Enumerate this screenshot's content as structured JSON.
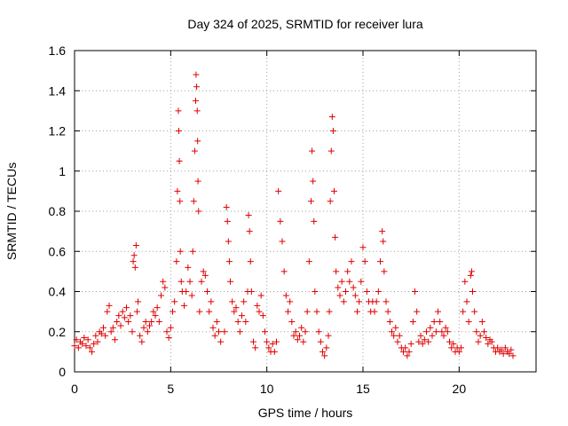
{
  "chart_data": {
    "type": "scatter",
    "title": "Day 324 of 2025, SRMTID for receiver lura",
    "xlabel": "GPS time / hours",
    "ylabel": "SRMTID / TECUs",
    "xlim": [
      0,
      24
    ],
    "ylim": [
      0,
      1.6
    ],
    "x_ticks": [
      0,
      5,
      10,
      15,
      20
    ],
    "x_tick_labels": [
      "0",
      "5",
      "10",
      "15",
      "20"
    ],
    "y_ticks": [
      0,
      0.2,
      0.4,
      0.6,
      0.8,
      1.0,
      1.2,
      1.4,
      1.6
    ],
    "y_tick_labels": [
      "0",
      "0.2",
      "0.4",
      "0.6",
      "0.8",
      "1",
      "1.2",
      "1.4",
      "1.6"
    ],
    "grid": true,
    "marker": "plus",
    "color": "#e00000",
    "series": [
      {
        "name": "SRMTID",
        "points": [
          [
            0.0,
            0.13
          ],
          [
            0.1,
            0.16
          ],
          [
            0.2,
            0.12
          ],
          [
            0.3,
            0.15
          ],
          [
            0.4,
            0.14
          ],
          [
            0.5,
            0.17
          ],
          [
            0.6,
            0.13
          ],
          [
            0.7,
            0.16
          ],
          [
            0.8,
            0.12
          ],
          [
            0.9,
            0.1
          ],
          [
            1.0,
            0.14
          ],
          [
            1.1,
            0.18
          ],
          [
            1.2,
            0.15
          ],
          [
            1.3,
            0.2
          ],
          [
            1.4,
            0.19
          ],
          [
            1.5,
            0.22
          ],
          [
            1.6,
            0.18
          ],
          [
            1.7,
            0.3
          ],
          [
            1.8,
            0.33
          ],
          [
            1.9,
            0.2
          ],
          [
            2.0,
            0.22
          ],
          [
            2.1,
            0.16
          ],
          [
            2.2,
            0.25
          ],
          [
            2.3,
            0.28
          ],
          [
            2.4,
            0.23
          ],
          [
            2.5,
            0.3
          ],
          [
            2.6,
            0.27
          ],
          [
            2.7,
            0.32
          ],
          [
            2.8,
            0.25
          ],
          [
            2.9,
            0.28
          ],
          [
            3.0,
            0.2
          ],
          [
            3.05,
            0.55
          ],
          [
            3.1,
            0.58
          ],
          [
            3.15,
            0.52
          ],
          [
            3.2,
            0.63
          ],
          [
            3.25,
            0.3
          ],
          [
            3.3,
            0.35
          ],
          [
            3.4,
            0.18
          ],
          [
            3.5,
            0.15
          ],
          [
            3.6,
            0.22
          ],
          [
            3.7,
            0.25
          ],
          [
            3.8,
            0.2
          ],
          [
            3.9,
            0.23
          ],
          [
            4.0,
            0.25
          ],
          [
            4.1,
            0.3
          ],
          [
            4.2,
            0.28
          ],
          [
            4.3,
            0.32
          ],
          [
            4.4,
            0.25
          ],
          [
            4.5,
            0.38
          ],
          [
            4.6,
            0.45
          ],
          [
            4.7,
            0.42
          ],
          [
            4.8,
            0.2
          ],
          [
            4.9,
            0.17
          ],
          [
            5.0,
            0.22
          ],
          [
            5.1,
            0.3
          ],
          [
            5.2,
            0.35
          ],
          [
            5.3,
            0.55
          ],
          [
            5.35,
            0.9
          ],
          [
            5.4,
            1.3
          ],
          [
            5.42,
            1.2
          ],
          [
            5.45,
            1.05
          ],
          [
            5.48,
            0.85
          ],
          [
            5.5,
            0.6
          ],
          [
            5.55,
            0.45
          ],
          [
            5.6,
            0.4
          ],
          [
            5.7,
            0.33
          ],
          [
            5.8,
            0.4
          ],
          [
            5.9,
            0.52
          ],
          [
            6.0,
            0.45
          ],
          [
            6.1,
            0.38
          ],
          [
            6.15,
            0.6
          ],
          [
            6.2,
            0.85
          ],
          [
            6.25,
            1.1
          ],
          [
            6.3,
            1.35
          ],
          [
            6.32,
            1.48
          ],
          [
            6.35,
            1.42
          ],
          [
            6.38,
            1.3
          ],
          [
            6.4,
            1.15
          ],
          [
            6.42,
            0.95
          ],
          [
            6.45,
            0.8
          ],
          [
            6.5,
            0.3
          ],
          [
            6.6,
            0.45
          ],
          [
            6.7,
            0.5
          ],
          [
            6.8,
            0.48
          ],
          [
            6.9,
            0.4
          ],
          [
            7.0,
            0.3
          ],
          [
            7.1,
            0.35
          ],
          [
            7.2,
            0.22
          ],
          [
            7.3,
            0.18
          ],
          [
            7.4,
            0.25
          ],
          [
            7.5,
            0.2
          ],
          [
            7.6,
            0.15
          ],
          [
            7.8,
            0.2
          ],
          [
            7.9,
            0.82
          ],
          [
            7.95,
            0.75
          ],
          [
            8.0,
            0.65
          ],
          [
            8.05,
            0.55
          ],
          [
            8.1,
            0.45
          ],
          [
            8.2,
            0.35
          ],
          [
            8.3,
            0.3
          ],
          [
            8.4,
            0.32
          ],
          [
            8.5,
            0.25
          ],
          [
            8.6,
            0.2
          ],
          [
            8.7,
            0.28
          ],
          [
            8.8,
            0.35
          ],
          [
            8.9,
            0.25
          ],
          [
            9.0,
            0.4
          ],
          [
            9.05,
            0.78
          ],
          [
            9.1,
            0.7
          ],
          [
            9.15,
            0.55
          ],
          [
            9.2,
            0.4
          ],
          [
            9.3,
            0.15
          ],
          [
            9.4,
            0.12
          ],
          [
            9.5,
            0.33
          ],
          [
            9.6,
            0.3
          ],
          [
            9.7,
            0.38
          ],
          [
            9.8,
            0.28
          ],
          [
            9.9,
            0.2
          ],
          [
            10.0,
            0.15
          ],
          [
            10.1,
            0.12
          ],
          [
            10.2,
            0.1
          ],
          [
            10.3,
            0.14
          ],
          [
            10.4,
            0.1
          ],
          [
            10.5,
            0.15
          ],
          [
            10.6,
            0.9
          ],
          [
            10.7,
            0.75
          ],
          [
            10.8,
            0.65
          ],
          [
            10.9,
            0.5
          ],
          [
            11.0,
            0.38
          ],
          [
            11.1,
            0.3
          ],
          [
            11.2,
            0.35
          ],
          [
            11.3,
            0.25
          ],
          [
            11.4,
            0.18
          ],
          [
            11.5,
            0.2
          ],
          [
            11.6,
            0.16
          ],
          [
            11.7,
            0.18
          ],
          [
            11.8,
            0.22
          ],
          [
            11.9,
            0.15
          ],
          [
            12.0,
            0.2
          ],
          [
            12.1,
            0.3
          ],
          [
            12.2,
            0.55
          ],
          [
            12.3,
            0.85
          ],
          [
            12.35,
            1.1
          ],
          [
            12.4,
            0.95
          ],
          [
            12.45,
            0.75
          ],
          [
            12.5,
            0.4
          ],
          [
            12.6,
            0.3
          ],
          [
            12.7,
            0.2
          ],
          [
            12.8,
            0.15
          ],
          [
            12.9,
            0.1
          ],
          [
            13.0,
            0.08
          ],
          [
            13.1,
            0.12
          ],
          [
            13.2,
            0.18
          ],
          [
            13.25,
            0.3
          ],
          [
            13.3,
            0.85
          ],
          [
            13.35,
            1.1
          ],
          [
            13.4,
            1.27
          ],
          [
            13.45,
            1.2
          ],
          [
            13.5,
            0.9
          ],
          [
            13.55,
            0.67
          ],
          [
            13.6,
            0.5
          ],
          [
            13.7,
            0.42
          ],
          [
            13.8,
            0.38
          ],
          [
            13.9,
            0.45
          ],
          [
            14.0,
            0.35
          ],
          [
            14.1,
            0.4
          ],
          [
            14.2,
            0.5
          ],
          [
            14.3,
            0.45
          ],
          [
            14.4,
            0.55
          ],
          [
            14.5,
            0.42
          ],
          [
            14.6,
            0.38
          ],
          [
            14.7,
            0.3
          ],
          [
            14.8,
            0.35
          ],
          [
            14.9,
            0.45
          ],
          [
            15.0,
            0.62
          ],
          [
            15.1,
            0.55
          ],
          [
            15.2,
            0.4
          ],
          [
            15.3,
            0.35
          ],
          [
            15.4,
            0.3
          ],
          [
            15.5,
            0.35
          ],
          [
            15.6,
            0.3
          ],
          [
            15.7,
            0.35
          ],
          [
            15.8,
            0.4
          ],
          [
            15.9,
            0.55
          ],
          [
            16.0,
            0.7
          ],
          [
            16.05,
            0.65
          ],
          [
            16.1,
            0.5
          ],
          [
            16.2,
            0.35
          ],
          [
            16.3,
            0.3
          ],
          [
            16.4,
            0.25
          ],
          [
            16.5,
            0.2
          ],
          [
            16.6,
            0.18
          ],
          [
            16.7,
            0.22
          ],
          [
            16.8,
            0.15
          ],
          [
            16.9,
            0.18
          ],
          [
            17.0,
            0.12
          ],
          [
            17.1,
            0.1
          ],
          [
            17.2,
            0.12
          ],
          [
            17.3,
            0.08
          ],
          [
            17.4,
            0.1
          ],
          [
            17.5,
            0.14
          ],
          [
            17.6,
            0.25
          ],
          [
            17.7,
            0.4
          ],
          [
            17.8,
            0.3
          ],
          [
            17.9,
            0.15
          ],
          [
            18.0,
            0.18
          ],
          [
            18.1,
            0.14
          ],
          [
            18.2,
            0.16
          ],
          [
            18.3,
            0.2
          ],
          [
            18.4,
            0.15
          ],
          [
            18.5,
            0.22
          ],
          [
            18.6,
            0.18
          ],
          [
            18.7,
            0.25
          ],
          [
            18.8,
            0.2
          ],
          [
            18.9,
            0.3
          ],
          [
            19.0,
            0.25
          ],
          [
            19.1,
            0.2
          ],
          [
            19.2,
            0.18
          ],
          [
            19.3,
            0.22
          ],
          [
            19.4,
            0.2
          ],
          [
            19.5,
            0.15
          ],
          [
            19.6,
            0.12
          ],
          [
            19.7,
            0.14
          ],
          [
            19.8,
            0.1
          ],
          [
            19.9,
            0.12
          ],
          [
            20.0,
            0.1
          ],
          [
            20.1,
            0.12
          ],
          [
            20.2,
            0.3
          ],
          [
            20.3,
            0.45
          ],
          [
            20.4,
            0.35
          ],
          [
            20.5,
            0.25
          ],
          [
            20.6,
            0.48
          ],
          [
            20.65,
            0.5
          ],
          [
            20.7,
            0.4
          ],
          [
            20.8,
            0.3
          ],
          [
            20.9,
            0.2
          ],
          [
            21.0,
            0.15
          ],
          [
            21.1,
            0.18
          ],
          [
            21.2,
            0.25
          ],
          [
            21.3,
            0.2
          ],
          [
            21.4,
            0.17
          ],
          [
            21.5,
            0.14
          ],
          [
            21.6,
            0.16
          ],
          [
            21.7,
            0.15
          ],
          [
            21.8,
            0.12
          ],
          [
            21.9,
            0.1
          ],
          [
            22.0,
            0.12
          ],
          [
            22.1,
            0.1
          ],
          [
            22.2,
            0.11
          ],
          [
            22.3,
            0.09
          ],
          [
            22.4,
            0.12
          ],
          [
            22.5,
            0.1
          ],
          [
            22.6,
            0.09
          ],
          [
            22.7,
            0.11
          ],
          [
            22.8,
            0.08
          ]
        ]
      }
    ]
  }
}
